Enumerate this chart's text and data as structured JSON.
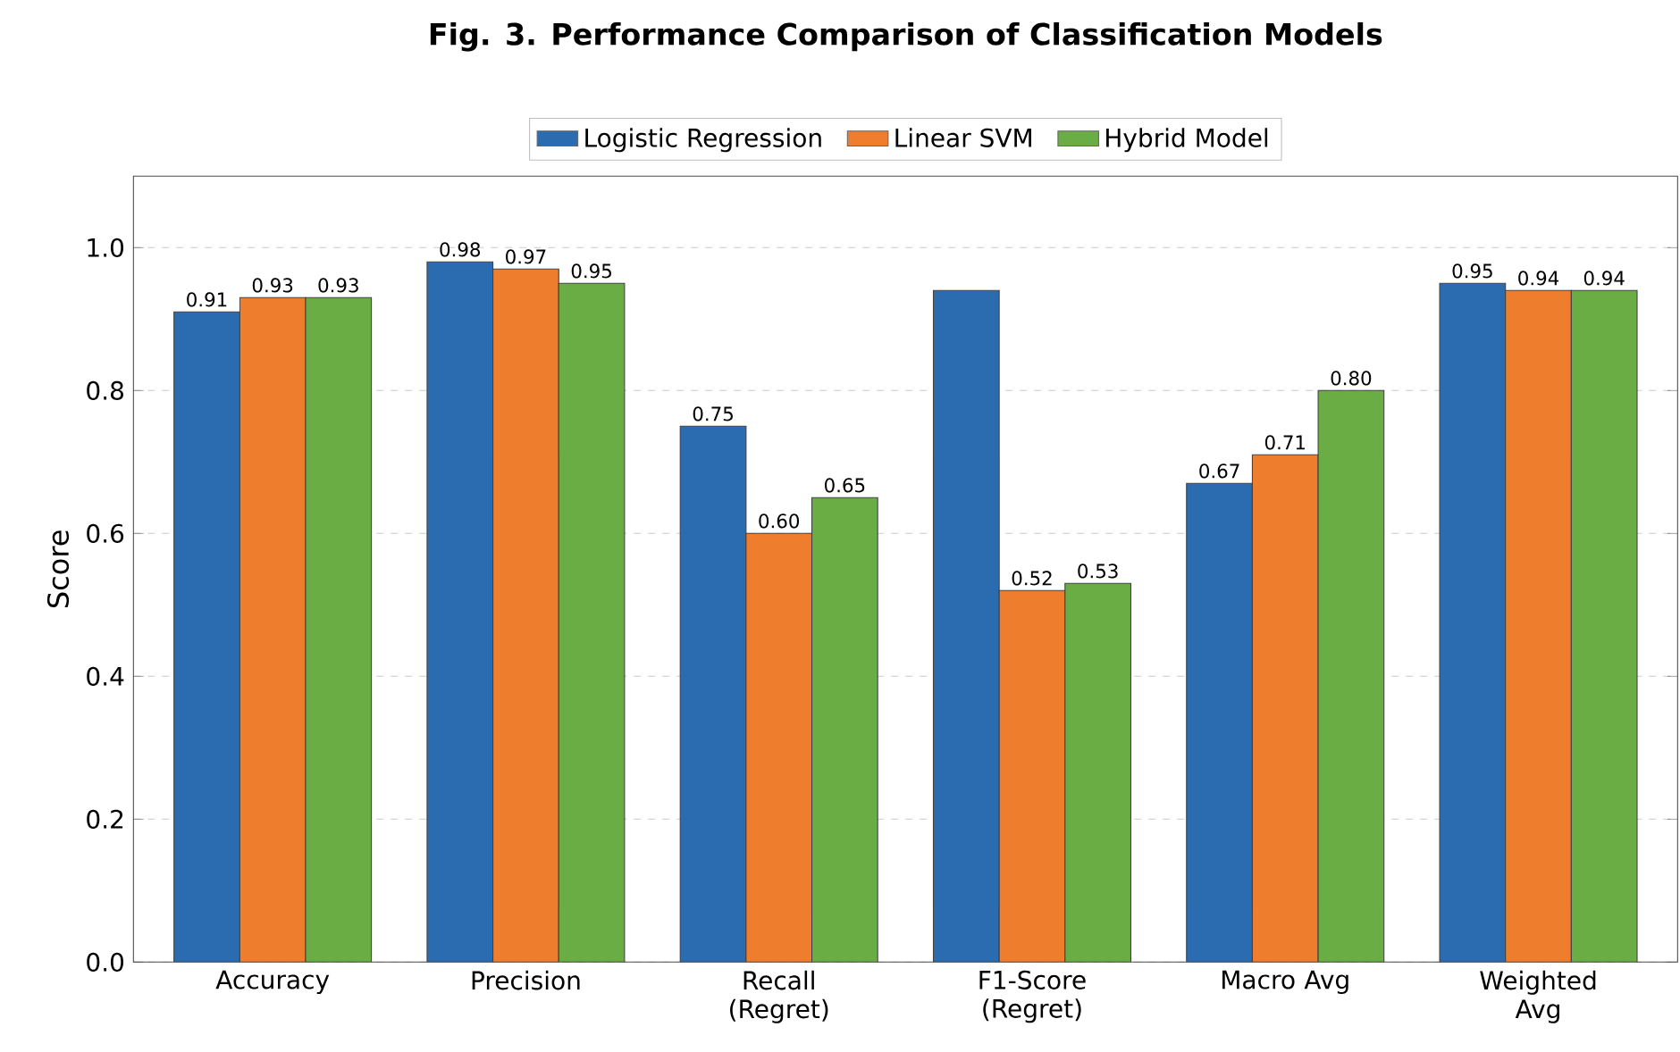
{
  "chart_data": {
    "type": "bar",
    "title": "Fig. 3. Performance Comparison of Classification Models",
    "ylabel": "Score",
    "categories": [
      "Accuracy",
      "Precision",
      "Recall (Regret)",
      "F1-Score (Regret)",
      "Macro Avg",
      "Weighted Avg"
    ],
    "series": [
      {
        "name": "Logistic Regression",
        "color": "#2b6cb0",
        "values": [
          0.91,
          0.98,
          0.75,
          0.94,
          0.67,
          0.95
        ],
        "value_labels": [
          "0.91",
          "0.98",
          "0.75",
          null,
          "0.67",
          "0.95"
        ]
      },
      {
        "name": "Linear SVM",
        "color": "#ee7d2e",
        "values": [
          0.93,
          0.97,
          0.6,
          0.52,
          0.71,
          0.94
        ],
        "value_labels": [
          "0.93",
          "0.97",
          "0.60",
          "0.52",
          "0.71",
          "0.94"
        ]
      },
      {
        "name": "Hybrid Model",
        "color": "#6aad45",
        "values": [
          0.93,
          0.95,
          0.65,
          0.53,
          0.8,
          0.94
        ],
        "value_labels": [
          "0.93",
          "0.95",
          "0.65",
          "0.53",
          "0.80",
          "0.94"
        ]
      }
    ],
    "ylim": [
      0,
      1.1
    ],
    "yticks": [
      {
        "value": 0,
        "label": "0.0"
      },
      {
        "value": 0.2,
        "label": "0.2"
      },
      {
        "value": 0.4,
        "label": "0.4"
      },
      {
        "value": 0.6,
        "label": "0.6"
      },
      {
        "value": 0.8,
        "label": "0.8"
      },
      {
        "value": 1.0,
        "label": "1.0"
      }
    ],
    "grid": "y",
    "legend": "top"
  }
}
